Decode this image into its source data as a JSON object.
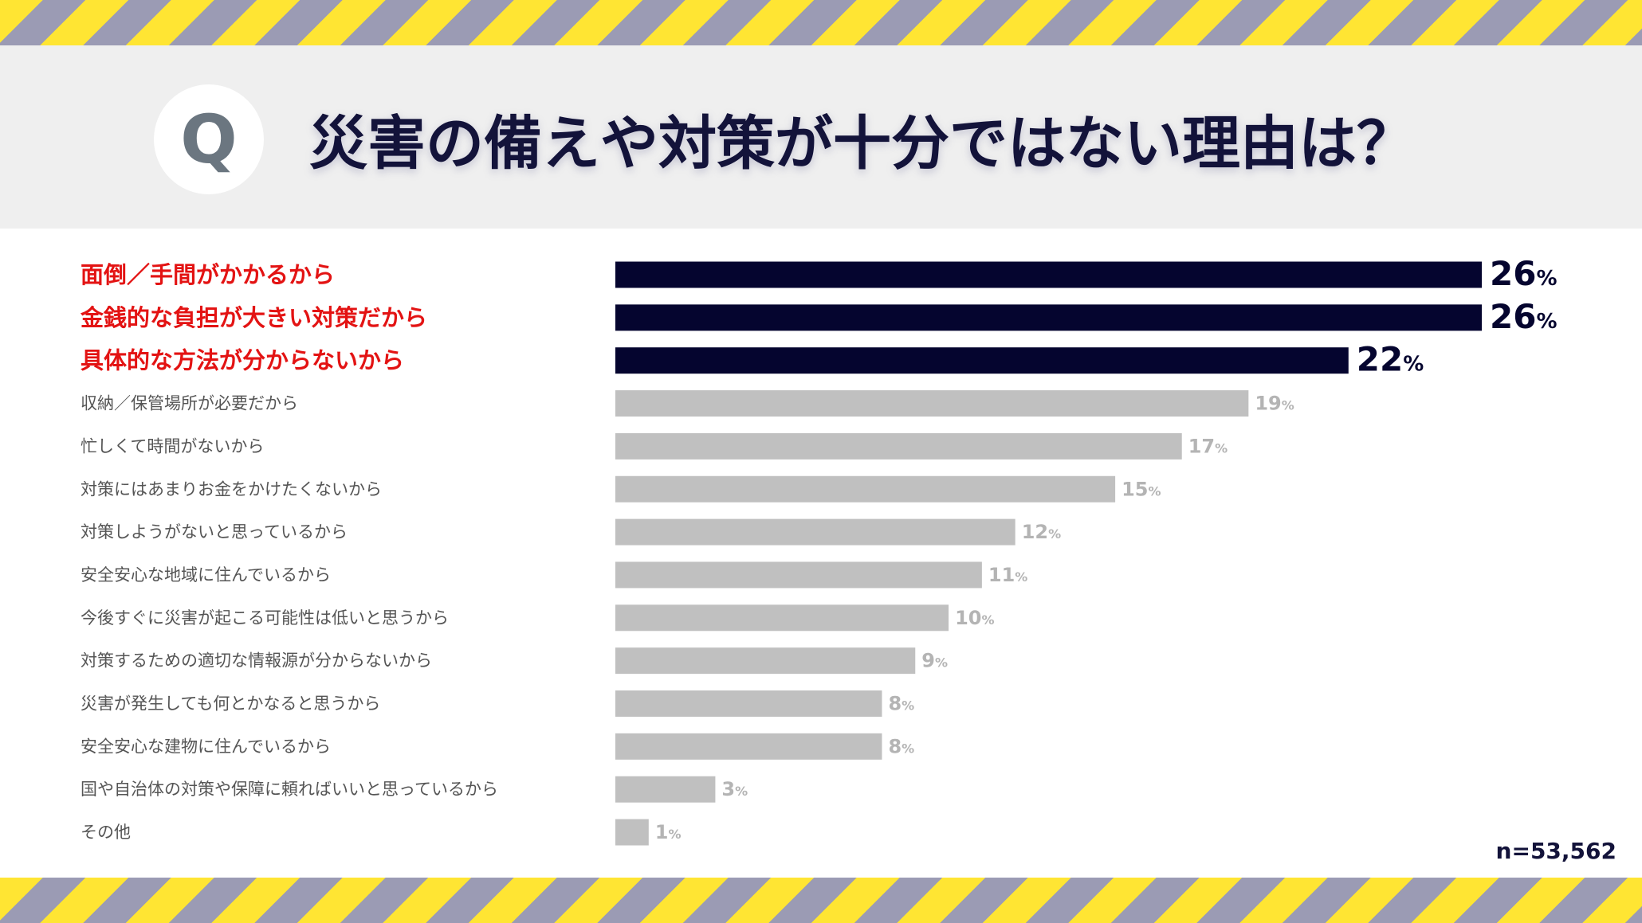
{
  "title": "災害の備えや対策が十分ではない理由は？",
  "badge_letter": "Q",
  "sample_size": "n=53,562",
  "colors": {
    "highlight_bar": "#05052f",
    "normal_bar": "#c0c0c0",
    "highlight_label": "#e31313",
    "normal_label": "#555555",
    "highlight_value": "#05052f",
    "normal_value": "#b4b4b4",
    "stripe_yellow": "#FFE533",
    "stripe_gray": "#9B9BB4",
    "title": "#13133a"
  },
  "chart_data": {
    "type": "bar",
    "orientation": "horizontal",
    "unit": "%",
    "xlim": [
      0,
      26
    ],
    "categories": [
      "面倒／手間がかかるから",
      "金銭的な負担が大きい対策だから",
      "具体的な方法が分からないから",
      "収納／保管場所が必要だから",
      "忙しくて時間がないから",
      "対策にはあまりお金をかけたくないから",
      "対策しようがないと思っているから",
      "安全安心な地域に住んでいるから",
      "今後すぐに災害が起こる可能性は低いと思うから",
      "対策するための適切な情報源が分からないから",
      "災害が発生しても何とかなると思うから",
      "安全安心な建物に住んでいるから",
      "国や自治体の対策や保障に頼ればいいと思っているから",
      "その他"
    ],
    "values": [
      26,
      26,
      22,
      19,
      17,
      15,
      12,
      11,
      10,
      9,
      8,
      8,
      3,
      1
    ],
    "highlighted": [
      true,
      true,
      true,
      false,
      false,
      false,
      false,
      false,
      false,
      false,
      false,
      false,
      false,
      false
    ]
  }
}
